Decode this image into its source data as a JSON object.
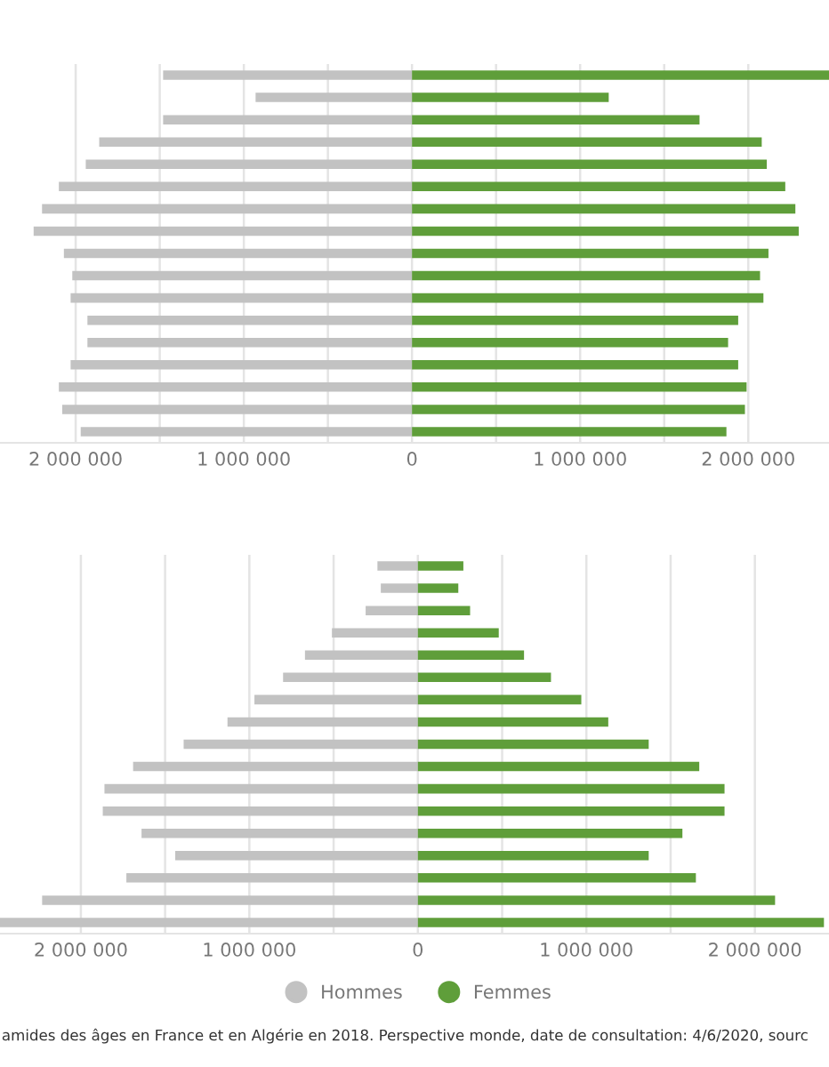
{
  "chart_data": [
    {
      "type": "bar",
      "orientation": "horizontal",
      "stacked": true,
      "categories": [
        null,
        null,
        null,
        null,
        null,
        null,
        null,
        null,
        null,
        null,
        null,
        null,
        null,
        null,
        null,
        null,
        null
      ],
      "series": [
        {
          "color": "#c2c2c2",
          "values": [
            -1480000,
            -930000,
            -1480000,
            -1860000,
            -1940000,
            -2100000,
            -2200000,
            -2250000,
            -2070000,
            -2020000,
            -2030000,
            -1930000,
            -1930000,
            -2030000,
            -2100000,
            -2080000,
            -1970000
          ]
        },
        {
          "color": "#5f9e3a",
          "values": [
            2480000,
            1170000,
            1710000,
            2080000,
            2110000,
            2220000,
            2280000,
            2300000,
            2120000,
            2070000,
            2090000,
            1940000,
            1880000,
            1940000,
            1990000,
            1980000,
            1870000
          ]
        }
      ],
      "xlim": [
        -2450000,
        2480000
      ],
      "xticks": [
        {
          "value": -2000000,
          "label": "2 000 000"
        },
        {
          "value": -1500000,
          "label": null
        },
        {
          "value": -1000000,
          "label": "1 000 000"
        },
        {
          "value": -500000,
          "label": null
        },
        0,
        {
          "value": 500000,
          "label": null
        },
        {
          "value": 1000000,
          "label": "1 000 000"
        },
        {
          "value": 1500000,
          "label": null
        },
        {
          "value": 2000000,
          "label": "2 000 000"
        }
      ],
      "grid": "x"
    },
    {
      "type": "bar",
      "orientation": "horizontal",
      "stacked": true,
      "categories": [
        null,
        null,
        null,
        null,
        null,
        null,
        null,
        null,
        null,
        null,
        null,
        null,
        null,
        null,
        null,
        null,
        null
      ],
      "series": [
        {
          "name": "Hommes",
          "color": "#c2c2c2",
          "values": [
            -240000,
            -220000,
            -310000,
            -510000,
            -670000,
            -800000,
            -970000,
            -1130000,
            -1390000,
            -1690000,
            -1860000,
            -1870000,
            -1640000,
            -1440000,
            -1730000,
            -2230000,
            -2480000
          ]
        },
        {
          "name": "Femmes",
          "color": "#5f9e3a",
          "values": [
            270000,
            240000,
            310000,
            480000,
            630000,
            790000,
            970000,
            1130000,
            1370000,
            1670000,
            1820000,
            1820000,
            1570000,
            1370000,
            1650000,
            2120000,
            2410000
          ]
        }
      ],
      "xlim": [
        -2480000,
        2440000
      ],
      "xticks": [
        {
          "value": -2000000,
          "label": "2 000 000"
        },
        {
          "value": -1500000,
          "label": null
        },
        {
          "value": -1000000,
          "label": "1 000 000"
        },
        {
          "value": -500000,
          "label": null
        },
        0,
        {
          "value": 500000,
          "label": null
        },
        {
          "value": 1000000,
          "label": "1 000 000"
        },
        {
          "value": 1500000,
          "label": null
        },
        {
          "value": 2000000,
          "label": "2 000 000"
        }
      ],
      "grid": "x",
      "legend": "bottom",
      "annotations": [
        "amides des âges en France et en Algérie en 2018. Perspective monde, date de consultation: 4/6/2020, sourc"
      ]
    }
  ]
}
